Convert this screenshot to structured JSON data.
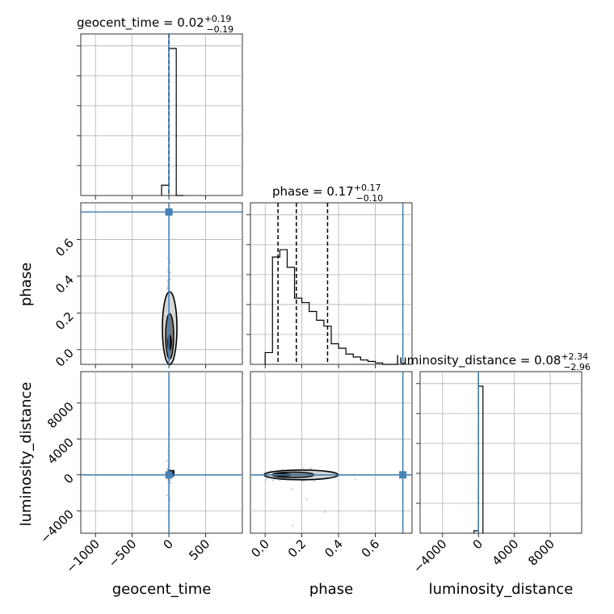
{
  "chart_data": {
    "type": "corner",
    "parameters": [
      "geocent_time",
      "phase",
      "luminosity_distance"
    ],
    "titles": {
      "geocent_time": {
        "name": "geocent_time",
        "median": "0.02",
        "plus": "+0.19",
        "minus": "−0.19"
      },
      "phase": {
        "name": "phase",
        "median": "0.17",
        "plus": "+0.17",
        "minus": "−0.10"
      },
      "luminosity_distance": {
        "name": "luminosity_distance",
        "median": "0.08",
        "plus": "+2.34",
        "minus": "−2.96"
      }
    },
    "axis_labels": {
      "geocent_time": "geocent_time",
      "phase": "phase",
      "luminosity_distance": "luminosity_distance"
    },
    "ranges": {
      "geocent_time": [
        -1200,
        1000
      ],
      "phase": [
        -0.08,
        0.8
      ],
      "luminosity_distance": [
        -6500,
        11500
      ]
    },
    "ticks": {
      "geocent_time": [
        -1000,
        -500,
        0,
        500
      ],
      "phase": [
        0.0,
        0.2,
        0.4,
        0.6
      ],
      "luminosity_distance": [
        -4000,
        0,
        4000,
        8000
      ]
    },
    "tick_labels": {
      "geocent_time": [
        "−1000",
        "−500",
        "0",
        "500"
      ],
      "phase": [
        "0.0",
        "0.2",
        "0.4",
        "0.6"
      ],
      "luminosity_distance": [
        "−4000",
        "0",
        "4000",
        "8000"
      ]
    },
    "truths": {
      "geocent_time": 0,
      "phase": 0.75,
      "luminosity_distance": 0
    },
    "quantiles": {
      "geocent_time": [
        -0.17,
        0.02,
        0.21
      ],
      "phase": [
        0.07,
        0.17,
        0.34
      ],
      "luminosity_distance": [
        -2.88,
        0.08,
        2.42
      ]
    },
    "histograms": {
      "geocent_time": {
        "edges": [
          -100,
          0,
          100,
          200
        ],
        "counts": [
          0.07,
          1.0,
          0.0
        ]
      },
      "phase": {
        "edges": [
          0.0,
          0.04,
          0.08,
          0.12,
          0.16,
          0.2,
          0.24,
          0.28,
          0.32,
          0.36,
          0.4,
          0.44,
          0.48,
          0.52,
          0.56,
          0.6,
          0.64,
          0.68,
          0.72
        ],
        "counts": [
          0.08,
          0.73,
          0.78,
          0.66,
          0.45,
          0.42,
          0.36,
          0.3,
          0.26,
          0.14,
          0.11,
          0.07,
          0.05,
          0.03,
          0.02,
          0.01,
          0.0,
          0.0
        ]
      },
      "luminosity_distance": {
        "edges": [
          -500,
          0,
          500
        ],
        "counts": [
          0.017,
          1.0
        ]
      }
    },
    "grid": true
  }
}
